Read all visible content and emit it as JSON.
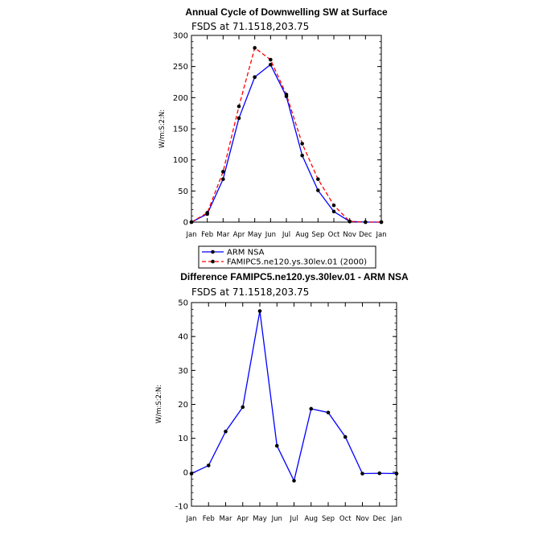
{
  "chart_data": [
    {
      "type": "line",
      "title": "Annual Cycle of Downwelling SW at Surface",
      "subtitle": "FSDS at 71.1518,203.75",
      "ylabel": "W/m:S:2:N:",
      "xlabel": "",
      "categories": [
        "Jan",
        "Feb",
        "Mar",
        "Apr",
        "May",
        "Jun",
        "Jul",
        "Aug",
        "Sep",
        "Oct",
        "Nov",
        "Dec",
        "Jan"
      ],
      "ylim": [
        0,
        300
      ],
      "yticks": [
        0,
        50,
        100,
        150,
        200,
        250,
        300
      ],
      "legend_position": "below",
      "series": [
        {
          "name": "ARM NSA",
          "color": "#0000ff",
          "dash": "solid",
          "values": [
            0,
            13,
            69,
            167,
            233,
            253,
            202,
            107,
            51,
            17,
            1,
            0,
            0
          ]
        },
        {
          "name": "FAMIPC5.ne120.ys.30lev.01 (2000)",
          "color": "#ff0000",
          "dash": "dashed",
          "values": [
            0,
            15,
            81,
            186,
            280,
            261,
            205,
            126,
            69,
            27,
            1,
            0,
            0
          ]
        }
      ]
    },
    {
      "type": "line",
      "title": "Difference FAMIPC5.ne120.ys.30lev.01 - ARM NSA",
      "subtitle": "FSDS at 71.1518,203.75",
      "ylabel": "W/m:S:2:N:",
      "xlabel": "",
      "categories": [
        "Jan",
        "Feb",
        "Mar",
        "Apr",
        "May",
        "Jun",
        "Jul",
        "Aug",
        "Sep",
        "Oct",
        "Nov",
        "Dec",
        "Jan"
      ],
      "ylim": [
        -10,
        50
      ],
      "yticks": [
        -10,
        0,
        10,
        20,
        30,
        40,
        50
      ],
      "series": [
        {
          "color": "#0000ff",
          "dash": "solid",
          "values": [
            -0.4,
            2,
            12,
            19.2,
            47.5,
            7.8,
            -2.5,
            18.7,
            17.6,
            10.4,
            -0.4,
            -0.3,
            -0.4
          ]
        }
      ]
    }
  ]
}
